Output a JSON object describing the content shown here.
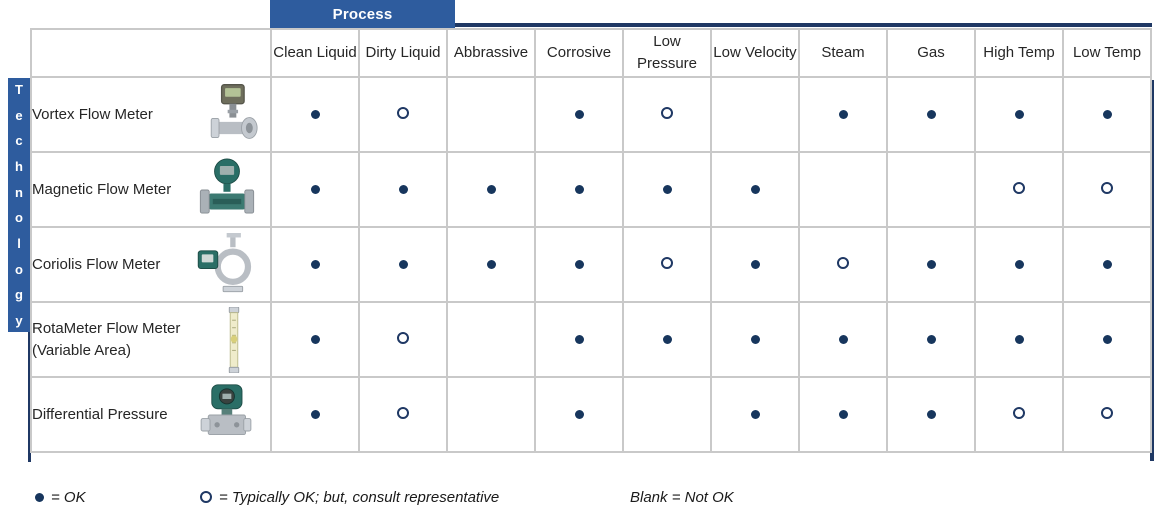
{
  "chart_data": {
    "type": "table",
    "column_group_label": "Process",
    "row_axis_label": "Technology",
    "columns": [
      "Clean Liquid",
      "Dirty Liquid",
      "Abbrassive",
      "Corrosive",
      "Low Pressure",
      "Low Velocity",
      "Steam",
      "Gas",
      "High Temp",
      "Low Temp"
    ],
    "rows": [
      {
        "label": "Vortex Flow Meter",
        "sublabel": "",
        "image": "vortex-flow-meter",
        "values": [
          "OK",
          "Typical",
          "",
          "OK",
          "Typical",
          "",
          "OK",
          "OK",
          "OK",
          "OK"
        ]
      },
      {
        "label": "Magnetic Flow Meter",
        "sublabel": "",
        "image": "magnetic-flow-meter",
        "values": [
          "OK",
          "OK",
          "OK",
          "OK",
          "OK",
          "OK",
          "",
          "",
          "Typical",
          "Typical"
        ]
      },
      {
        "label": "Coriolis Flow Meter",
        "sublabel": "",
        "image": "coriolis-flow-meter",
        "values": [
          "OK",
          "OK",
          "OK",
          "OK",
          "Typical",
          "OK",
          "Typical",
          "OK",
          "OK",
          "OK"
        ]
      },
      {
        "label": "RotaMeter Flow Meter",
        "sublabel": "(Variable Area)",
        "image": "rotameter-flow-meter",
        "values": [
          "OK",
          "Typical",
          "",
          "OK",
          "OK",
          "OK",
          "OK",
          "OK",
          "OK",
          "OK"
        ]
      },
      {
        "label": "Differential Pressure",
        "sublabel": "",
        "image": "differential-pressure-meter",
        "values": [
          "OK",
          "Typical",
          "",
          "OK",
          "",
          "OK",
          "OK",
          "OK",
          "Typical",
          "Typical"
        ]
      }
    ],
    "legend": [
      {
        "marker": "ok",
        "text": "= OK"
      },
      {
        "marker": "typical",
        "text": "= Typically OK; but, consult representative"
      },
      {
        "marker": "none",
        "text": "Blank = Not OK"
      }
    ],
    "value_meanings": {
      "OK": "filled dot",
      "Typical": "open circle",
      "": "blank = Not OK"
    }
  },
  "colors": {
    "header_blue": "#2E5C9E",
    "rule_navy": "#1F3864",
    "dot_navy": "#17365D",
    "grid_gray": "#C9C9C9"
  }
}
